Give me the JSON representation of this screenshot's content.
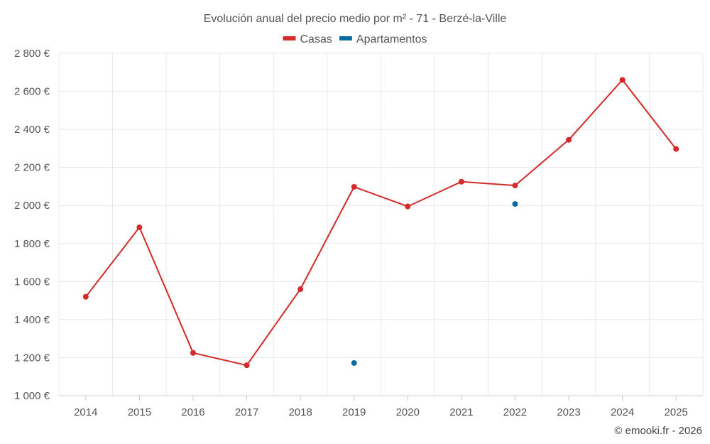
{
  "chart_data": {
    "type": "line",
    "title": "Evolución anual del precio medio por m² - 71 - Berzé-la-Ville",
    "xlabel": "",
    "ylabel": "",
    "x": [
      "2014",
      "2015",
      "2016",
      "2017",
      "2018",
      "2019",
      "2020",
      "2021",
      "2022",
      "2023",
      "2024",
      "2025"
    ],
    "ylim": [
      1000,
      2800
    ],
    "yticks": [
      1000,
      1200,
      1400,
      1600,
      1800,
      2000,
      2200,
      2400,
      2600,
      2800
    ],
    "ytick_labels": [
      "1 000 €",
      "1 200 €",
      "1 400 €",
      "1 600 €",
      "1 800 €",
      "2 000 €",
      "2 200 €",
      "2 400 €",
      "2 600 €",
      "2 800 €"
    ],
    "grid": true,
    "legend_position": "top-center",
    "series": [
      {
        "name": "Casas",
        "color": "#d32a2a",
        "style": "line-markers",
        "values": [
          1520,
          1885,
          1225,
          1160,
          1560,
          2098,
          1995,
          2125,
          2105,
          2345,
          2660,
          2297
        ]
      },
      {
        "name": "Apartamentos",
        "color": "#0b6aa2",
        "style": "markers",
        "values": [
          null,
          null,
          null,
          null,
          null,
          1172,
          null,
          null,
          2008,
          null,
          null,
          null
        ]
      }
    ]
  },
  "footer": "© emooki.fr - 2026"
}
